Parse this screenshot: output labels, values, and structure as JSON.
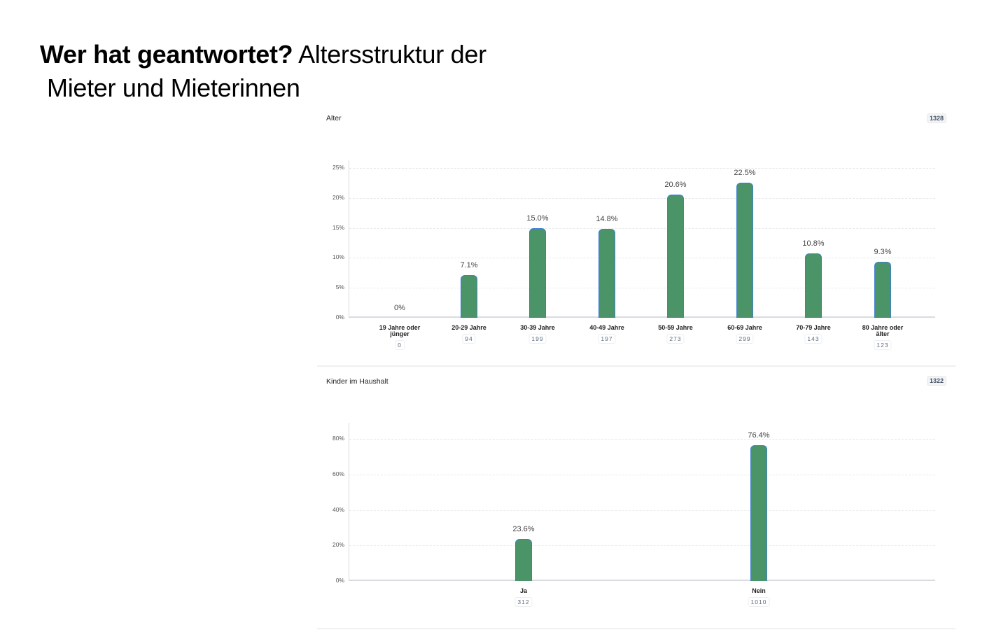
{
  "slide": {
    "title_bold": "Wer hat geantwortet?",
    "title_rest": " Altersstruktur der",
    "title_line2": "Mieter und Mieterinnen"
  },
  "chart_data": [
    {
      "type": "bar",
      "title": "Alter",
      "total": "1328",
      "categories": [
        "19 Jahre oder jünger",
        "20-29 Jahre",
        "30-39 Jahre",
        "40-49 Jahre",
        "50-59 Jahre",
        "60-69 Jahre",
        "70-79 Jahre",
        "80 Jahre oder älter"
      ],
      "values": [
        0,
        7.1,
        15.0,
        14.8,
        20.6,
        22.5,
        10.8,
        9.3
      ],
      "value_labels": [
        "0%",
        "7.1%",
        "15.0%",
        "14.8%",
        "20.6%",
        "22.5%",
        "10.8%",
        "9.3%"
      ],
      "counts": [
        0,
        94,
        199,
        197,
        273,
        299,
        143,
        123
      ],
      "yticks": [
        "0%",
        "5%",
        "10%",
        "15%",
        "20%",
        "25%"
      ],
      "ylim": [
        0,
        25
      ],
      "xlabel": "",
      "ylabel": "",
      "grid": true,
      "colors": {
        "bar": "#4a9468",
        "bar_border": "#3b7fd0"
      }
    },
    {
      "type": "bar",
      "title": "Kinder im Haushalt",
      "total": "1322",
      "categories": [
        "Ja",
        "Nein"
      ],
      "values": [
        23.6,
        76.4
      ],
      "value_labels": [
        "23.6%",
        "76.4%"
      ],
      "counts": [
        312,
        1010
      ],
      "yticks": [
        "0%",
        "20%",
        "40%",
        "60%",
        "80%"
      ],
      "ylim": [
        0,
        80
      ],
      "xlabel": "",
      "ylabel": "",
      "grid": true,
      "colors": {
        "bar": "#4a9468",
        "bar_border": "#3b7fd0"
      }
    }
  ]
}
